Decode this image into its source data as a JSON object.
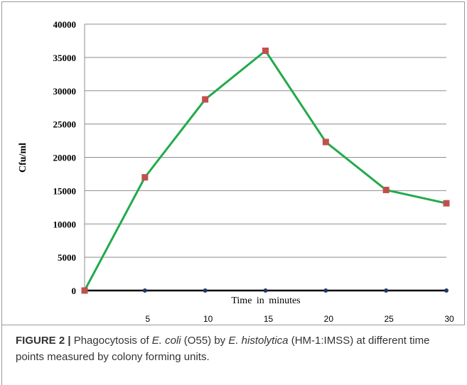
{
  "chart_data": {
    "type": "line",
    "title": "",
    "xlabel": "Time in minutes",
    "ylabel": "Cfu/ml",
    "ylim": [
      0,
      40000
    ],
    "yticks": [
      "0",
      "5000",
      "10000",
      "15000",
      "20000",
      "25000",
      "30000",
      "35000",
      "40000"
    ],
    "xticks": [
      "5",
      "10",
      "15",
      "20",
      "25",
      "30"
    ],
    "x": [
      0,
      5,
      10,
      15,
      20,
      25,
      30
    ],
    "grid": true,
    "legend": "none",
    "series": [
      {
        "color": "#22aa4c",
        "marker": "square",
        "marker_color": "#c0504d",
        "values": [
          0,
          17000,
          28700,
          36000,
          22300,
          15100,
          13100
        ]
      },
      {
        "color": "#000000",
        "marker": "circle",
        "marker_color": "#1f3864",
        "values": [
          0,
          0,
          0,
          0,
          0,
          0,
          0
        ]
      }
    ]
  },
  "caption": {
    "label": "FIGURE 2 |",
    "t1": " Phagocytosis of ",
    "organism1": "E. coli",
    "t2": " (O55) by ",
    "organism2": "E. histolytica",
    "t3": " (HM-1:IMSS) at different time points measured by colony forming units."
  }
}
